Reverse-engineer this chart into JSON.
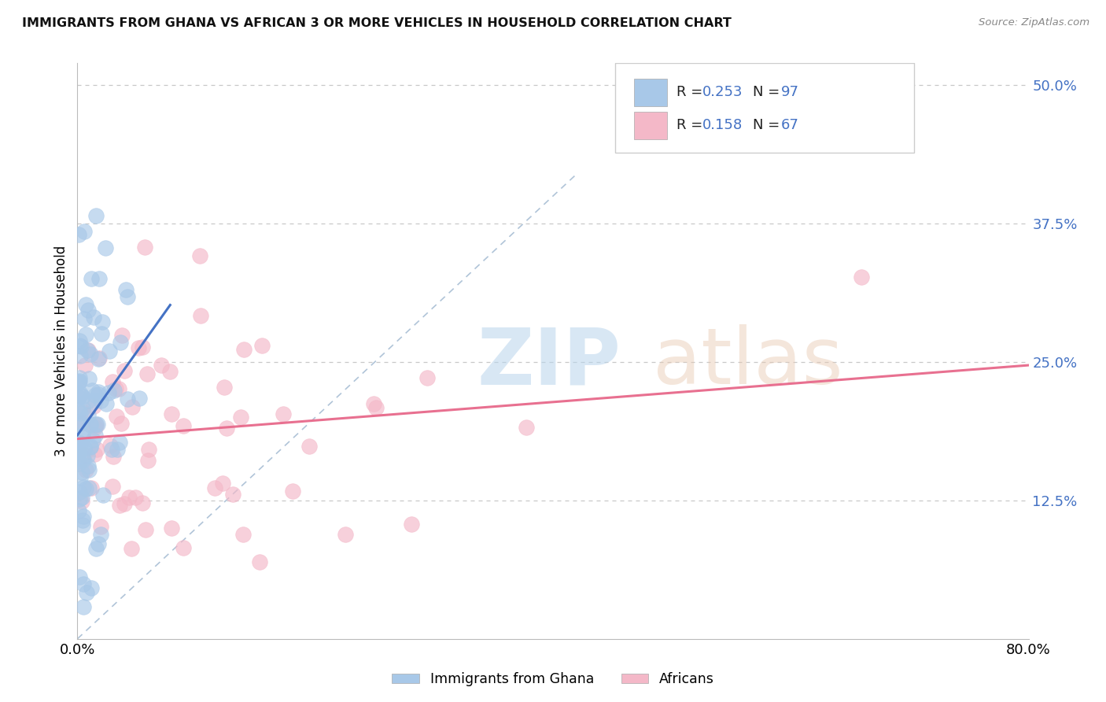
{
  "title": "IMMIGRANTS FROM GHANA VS AFRICAN 3 OR MORE VEHICLES IN HOUSEHOLD CORRELATION CHART",
  "source": "Source: ZipAtlas.com",
  "ylabel": "3 or more Vehicles in Household",
  "xlim": [
    0.0,
    0.8
  ],
  "ylim": [
    0.0,
    0.52
  ],
  "xticks": [
    0.0,
    0.1,
    0.2,
    0.3,
    0.4,
    0.5,
    0.6,
    0.7,
    0.8
  ],
  "xticklabels": [
    "0.0%",
    "",
    "",
    "",
    "",
    "",
    "",
    "",
    "80.0%"
  ],
  "yticks_right": [
    0.0,
    0.125,
    0.25,
    0.375,
    0.5
  ],
  "yticklabels_right": [
    "",
    "12.5%",
    "25.0%",
    "37.5%",
    "50.0%"
  ],
  "series1_color": "#a8c8e8",
  "series2_color": "#f4b8c8",
  "trendline1_color": "#4472c4",
  "trendline2_color": "#e87090",
  "diagonal_color": "#b0c4d8",
  "background_color": "#ffffff",
  "grid_color": "#c8c8c8",
  "right_tick_color": "#4472c4",
  "series1_R": 0.253,
  "series1_N": 97,
  "series2_R": 0.158,
  "series2_N": 67,
  "legend_blue_color": "#4472c4",
  "legend_black_color": "#222222"
}
